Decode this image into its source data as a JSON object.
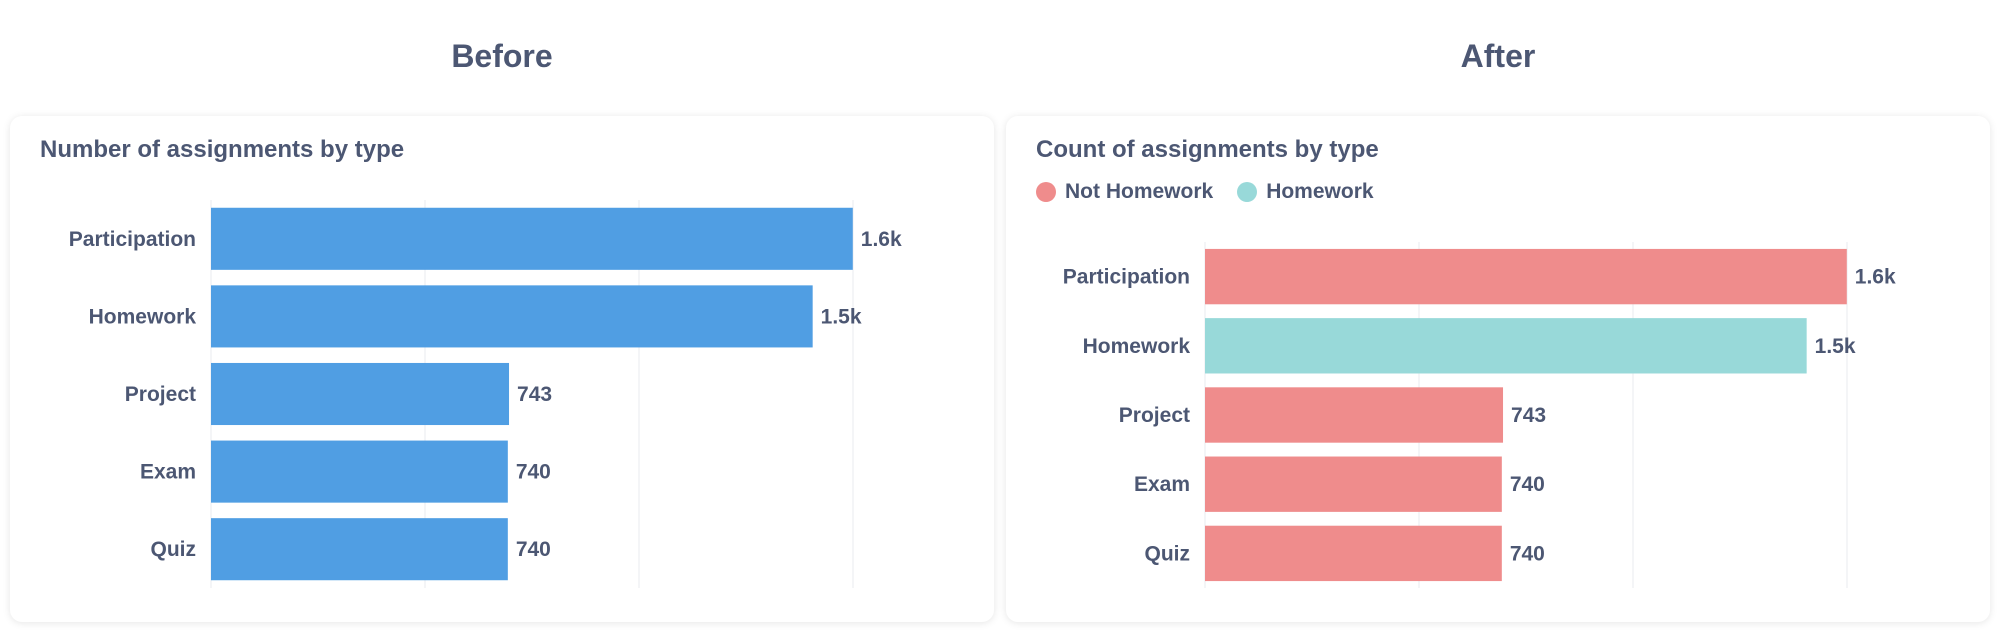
{
  "headings": {
    "before": "Before",
    "after": "After"
  },
  "chart_data": [
    {
      "type": "bar",
      "orientation": "horizontal",
      "title": "Number of assignments by type",
      "categories": [
        "Participation",
        "Homework",
        "Project",
        "Exam",
        "Quiz"
      ],
      "values": [
        1600,
        1500,
        743,
        740,
        740
      ],
      "data_labels": [
        "1.6k",
        "1.5k",
        "743",
        "740",
        "740"
      ],
      "xlim": [
        0,
        1800
      ],
      "grid": true,
      "colors": [
        "#509ee3",
        "#509ee3",
        "#509ee3",
        "#509ee3",
        "#509ee3"
      ]
    },
    {
      "type": "bar",
      "orientation": "horizontal",
      "title": "Count of assignments by type",
      "categories": [
        "Participation",
        "Homework",
        "Project",
        "Exam",
        "Quiz"
      ],
      "values": [
        1600,
        1500,
        743,
        740,
        740
      ],
      "data_labels": [
        "1.6k",
        "1.5k",
        "743",
        "740",
        "740"
      ],
      "xlim": [
        0,
        1800
      ],
      "grid": true,
      "colors": [
        "#ef8c8c",
        "#98d9d9",
        "#ef8c8c",
        "#ef8c8c",
        "#ef8c8c"
      ],
      "legend": [
        {
          "name": "Not Homework",
          "color": "#ef8c8c"
        },
        {
          "name": "Homework",
          "color": "#98d9d9"
        }
      ],
      "legend_position": "top-left"
    }
  ]
}
